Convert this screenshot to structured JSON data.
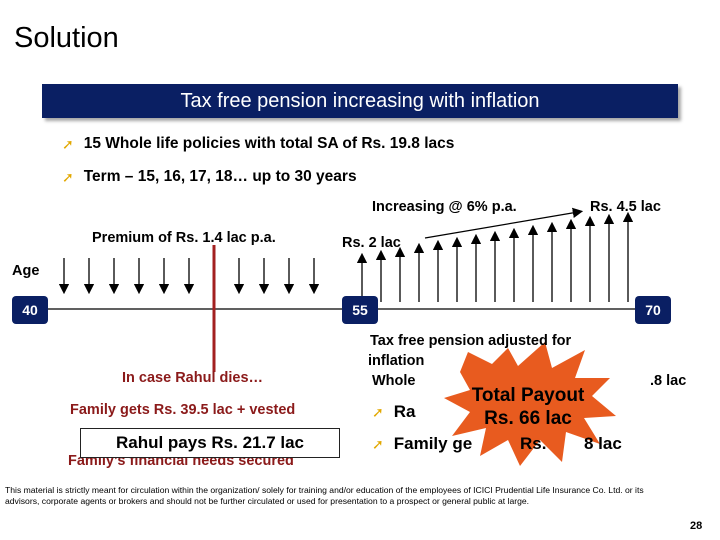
{
  "title": "Solution",
  "banner": "Tax free pension increasing with inflation",
  "bullets": [
    "15 Whole life policies with total SA of Rs. 19.8 lacs",
    "Term – 15, 16, 17, 18… up to 30 years"
  ],
  "timeline": {
    "increasing_label": "Increasing @ 6% p.a.",
    "end_amount": "Rs. 4.5 lac",
    "premium_label": "Premium of Rs. 1.4 lac p.a.",
    "start_amount": "Rs. 2 lac",
    "age_label": "Age",
    "age_start": "40",
    "age_mid": "55",
    "age_end": "70"
  },
  "left_panel": {
    "case_label": "In case Rahul dies…",
    "family_gets": "Family gets Rs. 39.5 lac + vested",
    "rahul_pays": "Rahul pays  Rs. 21.7 lac",
    "needs_secured": "Family’s financial needs secured"
  },
  "right_panel": {
    "line1": "Tax free pension adjusted for",
    "line2": "inflation",
    "line3a": "Whole",
    "line3b": ".8 lac",
    "bullet_a": "Ra",
    "bullet_b_pre": "Family ge",
    "bullet_b_post": "Rs.",
    "bullet_b_end": "8 lac"
  },
  "burst": {
    "line1": "Total Payout",
    "line2": "Rs. 66 lac"
  },
  "footer": "This material is strictly meant for circulation within the organization/ solely for training and/or education of the employees of ICICI Prudential Life Insurance Co. Ltd. or its advisors, corporate agents or brokers and should not be further circulated or used for presentation to a prospect or general public at large.",
  "page_number": "28",
  "colors": {
    "navy": "#0a1f63",
    "gold": "#e2a800",
    "red": "#a32020",
    "dark_red": "#8b1a1a"
  }
}
